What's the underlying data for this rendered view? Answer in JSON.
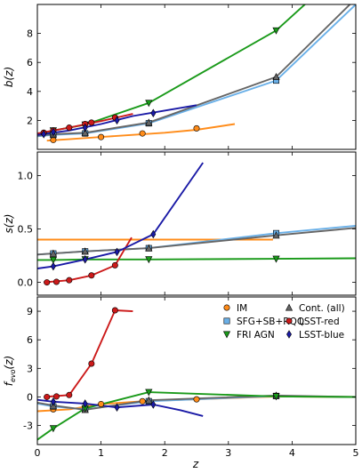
{
  "chart_data": {
    "type": "line",
    "x_range": [
      0,
      5
    ],
    "x_ticks": [
      0,
      1,
      2,
      3,
      4,
      5
    ],
    "xlabel": "z",
    "legend": {
      "placement": "top-right of bottom panel",
      "columns": 2,
      "entries": [
        {
          "name": "IM",
          "marker": "circle",
          "color": "#ff8c1a"
        },
        {
          "name": "Cont. (all)",
          "marker": "triangle-up",
          "color": "#666666"
        },
        {
          "name": "SFG+SB+RQQ",
          "marker": "square",
          "color": "#6ab0e8"
        },
        {
          "name": "LSST-red",
          "marker": "circle",
          "color": "#cc1a1a"
        },
        {
          "name": "FRI AGN",
          "marker": "triangle-down",
          "color": "#1a9a1a"
        },
        {
          "name": "LSST-blue",
          "marker": "diamond",
          "color": "#1a1aa6"
        }
      ]
    },
    "panels": [
      {
        "id": "b",
        "ylabel": "b(z)",
        "y_range": [
          0,
          10
        ],
        "y_ticks": [
          2,
          4,
          6,
          8
        ],
        "series": [
          {
            "name": "IM",
            "color": "#ff8c1a",
            "marker": "circle",
            "line": [
              [
                0.15,
                0.6
              ],
              [
                0.5,
                0.7
              ],
              [
                1.0,
                0.85
              ],
              [
                1.5,
                1.0
              ],
              [
                2.0,
                1.15
              ],
              [
                2.5,
                1.35
              ],
              [
                3.1,
                1.75
              ]
            ],
            "points": [
              [
                0.25,
                0.65
              ],
              [
                1.0,
                0.85
              ],
              [
                1.65,
                1.1
              ],
              [
                2.5,
                1.45
              ]
            ]
          },
          {
            "name": "SFG+SB+RQQ",
            "color": "#6ab0e8",
            "marker": "square",
            "line": [
              [
                0.0,
                0.9
              ],
              [
                0.25,
                1.0
              ],
              [
                0.75,
                1.1
              ],
              [
                1.75,
                1.8
              ],
              [
                3.75,
                4.75
              ],
              [
                5.0,
                10.0
              ]
            ],
            "points": [
              [
                0.25,
                1.0
              ],
              [
                0.75,
                1.1
              ],
              [
                1.75,
                1.8
              ],
              [
                3.75,
                4.75
              ]
            ]
          },
          {
            "name": "Cont. (all)",
            "color": "#666666",
            "marker": "triangle-up",
            "line": [
              [
                0.0,
                0.95
              ],
              [
                0.25,
                1.05
              ],
              [
                0.75,
                1.15
              ],
              [
                1.75,
                1.85
              ],
              [
                3.75,
                5.0
              ],
              [
                5.0,
                10.4
              ]
            ],
            "points": [
              [
                0.25,
                1.05
              ],
              [
                0.75,
                1.15
              ],
              [
                1.75,
                1.85
              ],
              [
                3.75,
                5.0
              ]
            ]
          },
          {
            "name": "FRI AGN",
            "color": "#1a9a1a",
            "marker": "triangle-down",
            "line": [
              [
                0.0,
                1.0
              ],
              [
                0.25,
                1.3
              ],
              [
                0.75,
                1.7
              ],
              [
                1.75,
                3.2
              ],
              [
                3.75,
                8.2
              ],
              [
                4.3,
                10.4
              ]
            ],
            "points": [
              [
                0.25,
                1.3
              ],
              [
                0.75,
                1.7
              ],
              [
                1.75,
                3.2
              ],
              [
                3.75,
                8.2
              ]
            ]
          },
          {
            "name": "LSST-red",
            "color": "#cc1a1a",
            "marker": "circle",
            "line": [
              [
                0.0,
                1.1
              ],
              [
                0.5,
                1.5
              ],
              [
                1.0,
                1.95
              ],
              [
                1.5,
                2.45
              ]
            ],
            "points": [
              [
                0.1,
                1.15
              ],
              [
                0.25,
                1.3
              ],
              [
                0.5,
                1.5
              ],
              [
                0.75,
                1.75
              ],
              [
                0.85,
                1.85
              ],
              [
                1.22,
                2.2
              ]
            ]
          },
          {
            "name": "LSST-blue",
            "color": "#1a1aa6",
            "marker": "diamond",
            "line": [
              [
                0.0,
                1.0
              ],
              [
                0.5,
                1.3
              ],
              [
                1.0,
                1.75
              ],
              [
                1.5,
                2.3
              ],
              [
                2.5,
                3.05
              ]
            ],
            "points": [
              [
                0.1,
                1.05
              ],
              [
                0.25,
                1.2
              ],
              [
                0.75,
                1.5
              ],
              [
                1.25,
                2.0
              ],
              [
                1.82,
                2.5
              ]
            ]
          }
        ]
      },
      {
        "id": "s",
        "ylabel": "s(z)",
        "y_range": [
          -0.12,
          1.22
        ],
        "y_ticks": [
          0.0,
          0.5,
          1.0
        ],
        "y_tick_labels": [
          "0.0",
          "0.5",
          "1.0"
        ],
        "series": [
          {
            "name": "IM",
            "color": "#ff8c1a",
            "marker": "circle",
            "line": [
              [
                0.0,
                0.4
              ],
              [
                3.7,
                0.4
              ]
            ],
            "points": []
          },
          {
            "name": "SFG+SB+RQQ",
            "color": "#6ab0e8",
            "marker": "square",
            "line": [
              [
                0.0,
                0.26
              ],
              [
                0.25,
                0.27
              ],
              [
                0.75,
                0.29
              ],
              [
                1.75,
                0.32
              ],
              [
                3.75,
                0.46
              ],
              [
                5.0,
                0.53
              ]
            ],
            "points": [
              [
                0.25,
                0.27
              ],
              [
                0.75,
                0.29
              ],
              [
                1.75,
                0.32
              ],
              [
                3.75,
                0.46
              ]
            ]
          },
          {
            "name": "Cont. (all)",
            "color": "#666666",
            "marker": "triangle-up",
            "line": [
              [
                0.0,
                0.26
              ],
              [
                0.25,
                0.27
              ],
              [
                0.75,
                0.29
              ],
              [
                1.75,
                0.32
              ],
              [
                3.75,
                0.44
              ],
              [
                5.0,
                0.51
              ]
            ],
            "points": [
              [
                0.25,
                0.27
              ],
              [
                0.75,
                0.29
              ],
              [
                1.75,
                0.32
              ],
              [
                3.75,
                0.44
              ]
            ]
          },
          {
            "name": "FRI AGN",
            "color": "#1a9a1a",
            "marker": "triangle-down",
            "line": [
              [
                0.0,
                0.21
              ],
              [
                0.25,
                0.21
              ],
              [
                0.75,
                0.215
              ],
              [
                1.75,
                0.215
              ],
              [
                3.75,
                0.22
              ],
              [
                5.0,
                0.225
              ]
            ],
            "points": [
              [
                0.25,
                0.21
              ],
              [
                0.75,
                0.215
              ],
              [
                1.75,
                0.215
              ],
              [
                3.75,
                0.22
              ]
            ]
          },
          {
            "name": "LSST-red",
            "color": "#cc1a1a",
            "marker": "circle",
            "line": [
              [
                0.1,
                0.0
              ],
              [
                0.5,
                0.02
              ],
              [
                0.85,
                0.065
              ],
              [
                1.22,
                0.16
              ],
              [
                1.35,
                0.29
              ],
              [
                1.48,
                0.42
              ]
            ],
            "points": [
              [
                0.15,
                0.0
              ],
              [
                0.3,
                0.005
              ],
              [
                0.5,
                0.02
              ],
              [
                0.85,
                0.065
              ],
              [
                1.22,
                0.16
              ]
            ]
          },
          {
            "name": "LSST-blue",
            "color": "#1a1aa6",
            "marker": "diamond",
            "line": [
              [
                0.0,
                0.13
              ],
              [
                0.25,
                0.15
              ],
              [
                0.75,
                0.215
              ],
              [
                1.25,
                0.285
              ],
              [
                1.82,
                0.45
              ],
              [
                2.6,
                1.12
              ]
            ],
            "points": [
              [
                0.25,
                0.15
              ],
              [
                0.75,
                0.215
              ],
              [
                1.25,
                0.285
              ],
              [
                1.82,
                0.45
              ]
            ]
          }
        ]
      },
      {
        "id": "fevo",
        "ylabel": "f_evo(z)",
        "y_range": [
          -5,
          10.5
        ],
        "y_ticks": [
          -3,
          0,
          3,
          6,
          9
        ],
        "series": [
          {
            "name": "IM",
            "color": "#ff8c1a",
            "marker": "circle",
            "line": [
              [
                0.0,
                -1.5
              ],
              [
                0.5,
                -1.3
              ],
              [
                1.0,
                -0.75
              ],
              [
                1.65,
                -0.45
              ],
              [
                2.5,
                -0.25
              ],
              [
                3.75,
                0.05
              ],
              [
                5.0,
                0.0
              ]
            ],
            "points": [
              [
                0.25,
                -1.3
              ],
              [
                1.0,
                -0.75
              ],
              [
                1.65,
                -0.45
              ],
              [
                2.5,
                -0.25
              ]
            ]
          },
          {
            "name": "SFG+SB+RQQ",
            "color": "#6ab0e8",
            "marker": "square",
            "line": [
              [
                0.0,
                -0.7
              ],
              [
                0.25,
                -1.0
              ],
              [
                0.75,
                -1.3
              ],
              [
                1.75,
                -0.45
              ],
              [
                3.75,
                0.1
              ],
              [
                5.0,
                0.0
              ]
            ],
            "points": [
              [
                0.25,
                -1.0
              ],
              [
                0.75,
                -1.3
              ],
              [
                1.75,
                -0.45
              ],
              [
                3.75,
                0.1
              ]
            ]
          },
          {
            "name": "Cont. (all)",
            "color": "#666666",
            "marker": "triangle-up",
            "line": [
              [
                0.0,
                -0.6
              ],
              [
                0.25,
                -0.9
              ],
              [
                0.75,
                -1.35
              ],
              [
                1.75,
                -0.35
              ],
              [
                3.75,
                0.15
              ],
              [
                5.0,
                0.0
              ]
            ],
            "points": [
              [
                0.25,
                -0.9
              ],
              [
                0.75,
                -1.35
              ],
              [
                1.75,
                -0.35
              ],
              [
                3.75,
                0.15
              ]
            ]
          },
          {
            "name": "FRI AGN",
            "color": "#1a9a1a",
            "marker": "triangle-down",
            "line": [
              [
                0.0,
                -4.5
              ],
              [
                0.25,
                -3.3
              ],
              [
                0.75,
                -1.2
              ],
              [
                1.75,
                0.5
              ],
              [
                3.75,
                0.05
              ],
              [
                5.0,
                0.0
              ]
            ],
            "points": [
              [
                0.25,
                -3.3
              ],
              [
                0.75,
                -1.2
              ],
              [
                1.75,
                0.5
              ],
              [
                3.75,
                0.05
              ]
            ]
          },
          {
            "name": "LSST-red",
            "color": "#cc1a1a",
            "marker": "circle",
            "line": [
              [
                0.1,
                0.0
              ],
              [
                0.5,
                0.2
              ],
              [
                0.85,
                3.5
              ],
              [
                1.22,
                9.1
              ],
              [
                1.5,
                9.0
              ]
            ],
            "points": [
              [
                0.15,
                0.0
              ],
              [
                0.3,
                0.05
              ],
              [
                0.5,
                0.2
              ],
              [
                0.85,
                3.5
              ],
              [
                1.22,
                9.1
              ]
            ]
          },
          {
            "name": "LSST-blue",
            "color": "#1a1aa6",
            "marker": "diamond",
            "line": [
              [
                0.0,
                -0.3
              ],
              [
                0.25,
                -0.5
              ],
              [
                0.75,
                -0.7
              ],
              [
                1.25,
                -1.1
              ],
              [
                1.82,
                -0.8
              ],
              [
                2.25,
                -1.4
              ],
              [
                2.6,
                -2.0
              ]
            ],
            "points": [
              [
                0.25,
                -0.5
              ],
              [
                0.75,
                -0.7
              ],
              [
                1.25,
                -1.1
              ],
              [
                1.82,
                -0.8
              ]
            ]
          }
        ]
      }
    ]
  }
}
